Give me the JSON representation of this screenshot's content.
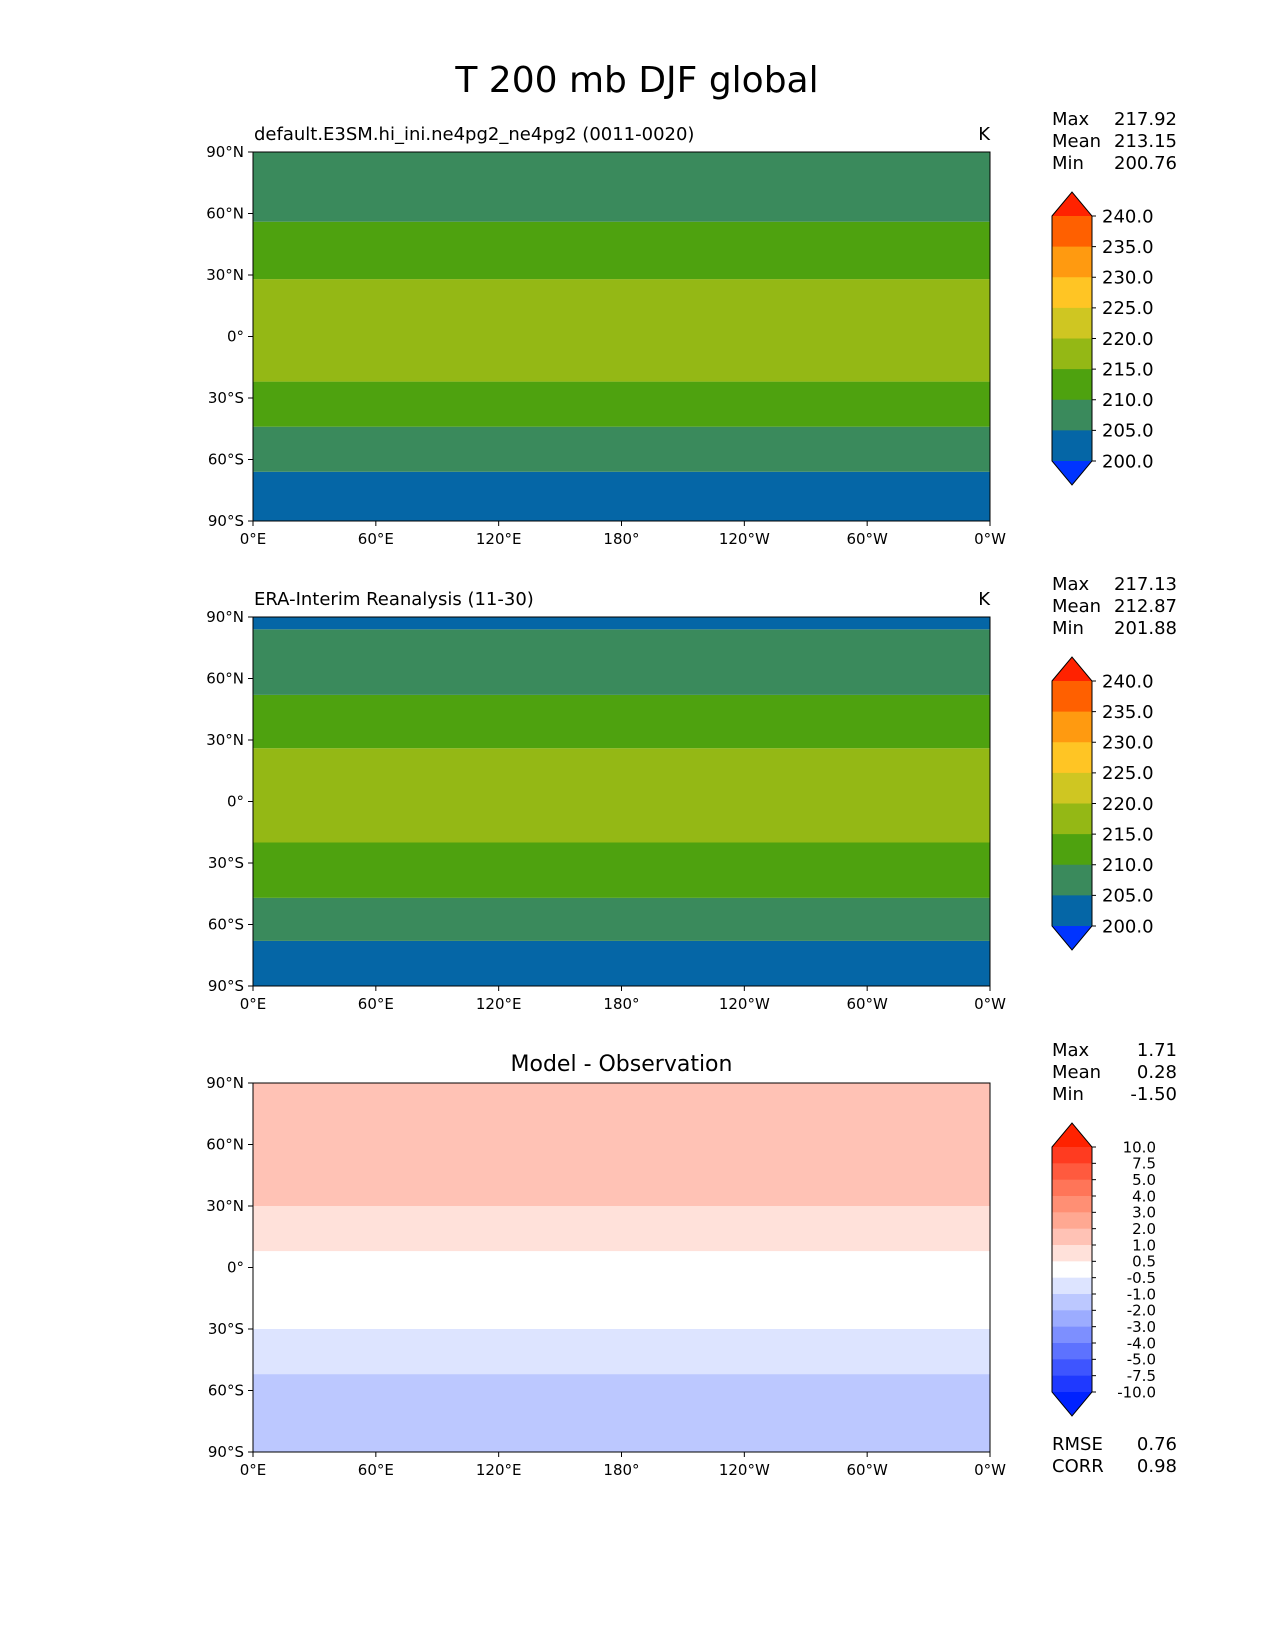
{
  "figure_title": "T 200 mb DJF global",
  "chart_data": [
    {
      "type": "heatmap",
      "title": "default.E3SM.hi_ini.ne4pg2_ne4pg2 (0011-0020)",
      "units": "K",
      "xlabel": "",
      "ylabel": "",
      "x_ticks": [
        "0°E",
        "60°E",
        "120°E",
        "180°",
        "120°W",
        "60°W",
        "0°W"
      ],
      "y_ticks": [
        "90°N",
        "60°N",
        "30°N",
        "0°",
        "30°S",
        "60°S",
        "90°S"
      ],
      "stats": [
        {
          "label": "Max",
          "value": "217.92"
        },
        {
          "label": "Mean",
          "value": "213.15"
        },
        {
          "label": "Min",
          "value": "200.76"
        }
      ],
      "colorbar": {
        "labels": [
          "240.0",
          "235.0",
          "230.0",
          "225.0",
          "220.0",
          "215.0",
          "210.0",
          "205.0",
          "200.0"
        ],
        "colors": [
          "#ff2200",
          "#ff6000",
          "#ff9a10",
          "#ffc524",
          "#cfc622",
          "#94b815",
          "#4ea20f",
          "#3a8a5c",
          "#0566a6",
          "#0034ff"
        ]
      },
      "bands": [
        {
          "lat_min": -90,
          "lat_max": -66,
          "color": "#0566a6"
        },
        {
          "lat_min": -66,
          "lat_max": -44,
          "color": "#3a8a5c"
        },
        {
          "lat_min": -44,
          "lat_max": -22,
          "color": "#4ea20f"
        },
        {
          "lat_min": -22,
          "lat_max": 28,
          "color": "#94b815"
        },
        {
          "lat_min": 28,
          "lat_max": 56,
          "color": "#4ea20f"
        },
        {
          "lat_min": 56,
          "lat_max": 90,
          "color": "#3a8a5c"
        }
      ]
    },
    {
      "type": "heatmap",
      "title": "ERA-Interim Reanalysis (11-30)",
      "units": "K",
      "xlabel": "",
      "ylabel": "",
      "x_ticks": [
        "0°E",
        "60°E",
        "120°E",
        "180°",
        "120°W",
        "60°W",
        "0°W"
      ],
      "y_ticks": [
        "90°N",
        "60°N",
        "30°N",
        "0°",
        "30°S",
        "60°S",
        "90°S"
      ],
      "stats": [
        {
          "label": "Max",
          "value": "217.13"
        },
        {
          "label": "Mean",
          "value": "212.87"
        },
        {
          "label": "Min",
          "value": "201.88"
        }
      ],
      "colorbar": {
        "labels": [
          "240.0",
          "235.0",
          "230.0",
          "225.0",
          "220.0",
          "215.0",
          "210.0",
          "205.0",
          "200.0"
        ],
        "colors": [
          "#ff2200",
          "#ff6000",
          "#ff9a10",
          "#ffc524",
          "#cfc622",
          "#94b815",
          "#4ea20f",
          "#3a8a5c",
          "#0566a6",
          "#0034ff"
        ]
      },
      "bands": [
        {
          "lat_min": -90,
          "lat_max": -68,
          "color": "#0566a6"
        },
        {
          "lat_min": -68,
          "lat_max": -47,
          "color": "#3a8a5c"
        },
        {
          "lat_min": -47,
          "lat_max": -20,
          "color": "#4ea20f"
        },
        {
          "lat_min": -20,
          "lat_max": 26,
          "color": "#94b815"
        },
        {
          "lat_min": 26,
          "lat_max": 52,
          "color": "#4ea20f"
        },
        {
          "lat_min": 52,
          "lat_max": 84,
          "color": "#3a8a5c"
        },
        {
          "lat_min": 84,
          "lat_max": 90,
          "color": "#0566a6"
        }
      ]
    },
    {
      "type": "heatmap",
      "title": "Model - Observation",
      "units": "",
      "xlabel": "",
      "ylabel": "",
      "x_ticks": [
        "0°E",
        "60°E",
        "120°E",
        "180°",
        "120°W",
        "60°W",
        "0°W"
      ],
      "y_ticks": [
        "90°N",
        "60°N",
        "30°N",
        "0°",
        "30°S",
        "60°S",
        "90°S"
      ],
      "stats": [
        {
          "label": "Max",
          "value": "1.71"
        },
        {
          "label": "Mean",
          "value": "0.28"
        },
        {
          "label": "Min",
          "value": "-1.50"
        }
      ],
      "extra_stats": [
        {
          "label": "RMSE",
          "value": "0.76"
        },
        {
          "label": "CORR",
          "value": "0.98"
        }
      ],
      "colorbar": {
        "labels": [
          "10.0",
          "7.5",
          "5.0",
          "4.0",
          "3.0",
          "2.0",
          "1.0",
          "0.5",
          "-0.5",
          "-1.0",
          "-2.0",
          "-3.0",
          "-4.0",
          "-5.0",
          "-7.5",
          "-10.0"
        ],
        "colors": [
          "#ff2200",
          "#ff3b20",
          "#ff5a3e",
          "#ff7558",
          "#ff8f74",
          "#ffa892",
          "#ffc2b5",
          "#ffe1da",
          "#ffffff",
          "#dde4ff",
          "#bcc8ff",
          "#9cacff",
          "#7d8fff",
          "#5d72ff",
          "#3e55ff",
          "#1f39ff",
          "#0022ff"
        ]
      },
      "bands": [
        {
          "lat_min": -90,
          "lat_max": -52,
          "color": "#bcc8ff"
        },
        {
          "lat_min": -52,
          "lat_max": -30,
          "color": "#dde4ff"
        },
        {
          "lat_min": -30,
          "lat_max": 8,
          "color": "#ffffff"
        },
        {
          "lat_min": 8,
          "lat_max": 30,
          "color": "#ffe1da"
        },
        {
          "lat_min": 30,
          "lat_max": 90,
          "color": "#ffc2b5"
        }
      ]
    }
  ]
}
